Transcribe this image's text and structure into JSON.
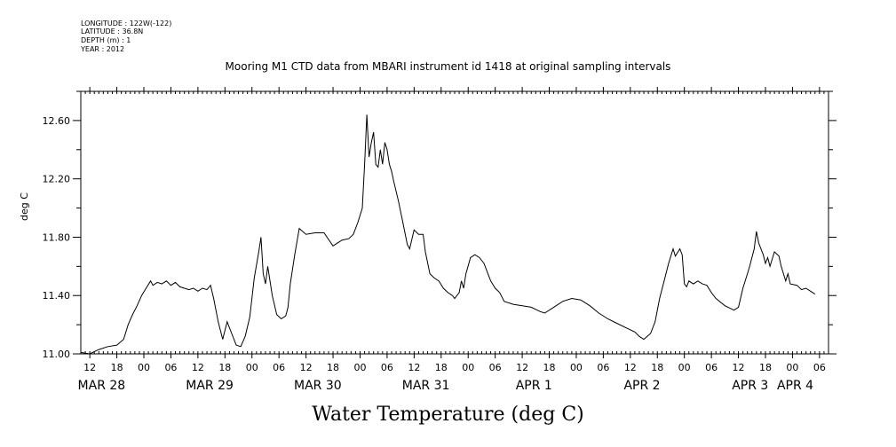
{
  "header": {
    "longitude": "LONGITUDE : 122W(-122)",
    "latitude": "LATITUDE : 36.8N",
    "depth": "DEPTH (m) : 1",
    "year": "YEAR : 2012"
  },
  "chart_data": {
    "type": "line",
    "title": "Mooring M1 CTD data from MBARI instrument id 1418 at original sampling intervals",
    "xlabel": "Water Temperature (deg C)",
    "ylabel": "deg C",
    "ylim": [
      11.0,
      12.8
    ],
    "yticks": [
      11.0,
      11.4,
      11.8,
      12.2,
      12.6
    ],
    "ytick_labels": [
      "11.00",
      "11.40",
      "11.80",
      "12.20",
      "12.60"
    ],
    "x_unit": "hours since MAR 28 00:00",
    "xlim": [
      10,
      176
    ],
    "hour_ticks": [
      12,
      18,
      0,
      6,
      12,
      18,
      0,
      6,
      12,
      18,
      0,
      6,
      12,
      18,
      0,
      6,
      12,
      18,
      0,
      6,
      12,
      18,
      0,
      6,
      12,
      18,
      0,
      6
    ],
    "hour_tick_labels": [
      "12",
      "18",
      "00",
      "06",
      "12",
      "18",
      "00",
      "06",
      "12",
      "18",
      "00",
      "06",
      "12",
      "18",
      "00",
      "06",
      "12",
      "18",
      "00",
      "06",
      "12",
      "18",
      "00",
      "06",
      "12",
      "18",
      "00",
      "06"
    ],
    "date_labels": [
      "MAR 28",
      "MAR 29",
      "MAR 30",
      "MAR 31",
      "APR  1",
      "APR  2",
      "APR  3",
      "APR  4"
    ],
    "grid": false,
    "series": [
      {
        "values": [
          [
            10,
            11.01
          ],
          [
            12,
            11.0
          ],
          [
            14,
            11.03
          ],
          [
            16,
            11.05
          ],
          [
            18,
            11.06
          ],
          [
            19.5,
            11.1
          ],
          [
            20.5,
            11.2
          ],
          [
            21.5,
            11.27
          ],
          [
            22.5,
            11.33
          ],
          [
            23.5,
            11.4
          ],
          [
            24.5,
            11.45
          ],
          [
            25.5,
            11.5
          ],
          [
            26,
            11.47
          ],
          [
            27,
            11.49
          ],
          [
            28,
            11.48
          ],
          [
            29,
            11.5
          ],
          [
            30,
            11.47
          ],
          [
            31,
            11.49
          ],
          [
            32,
            11.46
          ],
          [
            33,
            11.45
          ],
          [
            34,
            11.44
          ],
          [
            35,
            11.45
          ],
          [
            36,
            11.43
          ],
          [
            37,
            11.45
          ],
          [
            38,
            11.44
          ],
          [
            38.8,
            11.47
          ],
          [
            39.5,
            11.38
          ],
          [
            40.5,
            11.22
          ],
          [
            41.5,
            11.1
          ],
          [
            42.5,
            11.22
          ],
          [
            43.5,
            11.14
          ],
          [
            44.5,
            11.06
          ],
          [
            45.5,
            11.05
          ],
          [
            46.5,
            11.12
          ],
          [
            47.5,
            11.25
          ],
          [
            48,
            11.38
          ],
          [
            48.5,
            11.52
          ],
          [
            49.5,
            11.7
          ],
          [
            50,
            11.8
          ],
          [
            50.5,
            11.55
          ],
          [
            51,
            11.48
          ],
          [
            51.5,
            11.6
          ],
          [
            52.5,
            11.4
          ],
          [
            53.5,
            11.27
          ],
          [
            54.5,
            11.24
          ],
          [
            55.5,
            11.26
          ],
          [
            56,
            11.32
          ],
          [
            56.5,
            11.48
          ],
          [
            57.5,
            11.68
          ],
          [
            58.5,
            11.86
          ],
          [
            60,
            11.82
          ],
          [
            62,
            11.83
          ],
          [
            64,
            11.83
          ],
          [
            66,
            11.74
          ],
          [
            68,
            11.78
          ],
          [
            69.5,
            11.79
          ],
          [
            70.5,
            11.82
          ],
          [
            71.5,
            11.9
          ],
          [
            72.5,
            12.0
          ],
          [
            73,
            12.3
          ],
          [
            73.5,
            12.64
          ],
          [
            74,
            12.35
          ],
          [
            74.5,
            12.45
          ],
          [
            75,
            12.52
          ],
          [
            75.5,
            12.3
          ],
          [
            76,
            12.28
          ],
          [
            76.5,
            12.4
          ],
          [
            77,
            12.3
          ],
          [
            77.5,
            12.45
          ],
          [
            78,
            12.4
          ],
          [
            78.5,
            12.3
          ],
          [
            79,
            12.25
          ],
          [
            79.5,
            12.18
          ],
          [
            80.5,
            12.05
          ],
          [
            81.5,
            11.9
          ],
          [
            82.5,
            11.75
          ],
          [
            83,
            11.72
          ],
          [
            84,
            11.85
          ],
          [
            85,
            11.82
          ],
          [
            86,
            11.82
          ],
          [
            86.5,
            11.7
          ],
          [
            87.5,
            11.55
          ],
          [
            88.5,
            11.52
          ],
          [
            89.5,
            11.5
          ],
          [
            90.5,
            11.45
          ],
          [
            91.5,
            11.42
          ],
          [
            92.5,
            11.4
          ],
          [
            93,
            11.38
          ],
          [
            94,
            11.42
          ],
          [
            94.5,
            11.5
          ],
          [
            95,
            11.45
          ],
          [
            95.5,
            11.55
          ],
          [
            96.5,
            11.66
          ],
          [
            97.5,
            11.68
          ],
          [
            98.5,
            11.66
          ],
          [
            99.5,
            11.62
          ],
          [
            101,
            11.5
          ],
          [
            102,
            11.45
          ],
          [
            103,
            11.42
          ],
          [
            104,
            11.36
          ],
          [
            106,
            11.34
          ],
          [
            108,
            11.33
          ],
          [
            110,
            11.32
          ],
          [
            112,
            11.29
          ],
          [
            113,
            11.28
          ],
          [
            115,
            11.32
          ],
          [
            117,
            11.36
          ],
          [
            119,
            11.38
          ],
          [
            121,
            11.37
          ],
          [
            123,
            11.33
          ],
          [
            125,
            11.28
          ],
          [
            127,
            11.24
          ],
          [
            129,
            11.21
          ],
          [
            131,
            11.18
          ],
          [
            133,
            11.15
          ],
          [
            134,
            11.12
          ],
          [
            135,
            11.1
          ],
          [
            136.5,
            11.14
          ],
          [
            137.5,
            11.22
          ],
          [
            138.5,
            11.38
          ],
          [
            139.5,
            11.5
          ],
          [
            140.5,
            11.62
          ],
          [
            141.5,
            11.72
          ],
          [
            142,
            11.67
          ],
          [
            143,
            11.72
          ],
          [
            143.5,
            11.68
          ],
          [
            144,
            11.48
          ],
          [
            144.5,
            11.46
          ],
          [
            145,
            11.5
          ],
          [
            146,
            11.48
          ],
          [
            147,
            11.5
          ],
          [
            148,
            11.48
          ],
          [
            149,
            11.47
          ],
          [
            150,
            11.42
          ],
          [
            151,
            11.38
          ],
          [
            153,
            11.33
          ],
          [
            155,
            11.3
          ],
          [
            156,
            11.32
          ],
          [
            157,
            11.45
          ],
          [
            158,
            11.55
          ],
          [
            158.5,
            11.6
          ],
          [
            159.5,
            11.72
          ],
          [
            160,
            11.84
          ],
          [
            160.5,
            11.76
          ],
          [
            161,
            11.72
          ],
          [
            161.5,
            11.68
          ],
          [
            162,
            11.62
          ],
          [
            162.5,
            11.66
          ],
          [
            163,
            11.6
          ],
          [
            164,
            11.7
          ],
          [
            165,
            11.67
          ],
          [
            165.5,
            11.6
          ],
          [
            166.5,
            11.5
          ],
          [
            167,
            11.55
          ],
          [
            167.5,
            11.48
          ],
          [
            169,
            11.47
          ],
          [
            170,
            11.44
          ],
          [
            171,
            11.45
          ],
          [
            172,
            11.43
          ],
          [
            173,
            11.41
          ]
        ]
      }
    ]
  }
}
